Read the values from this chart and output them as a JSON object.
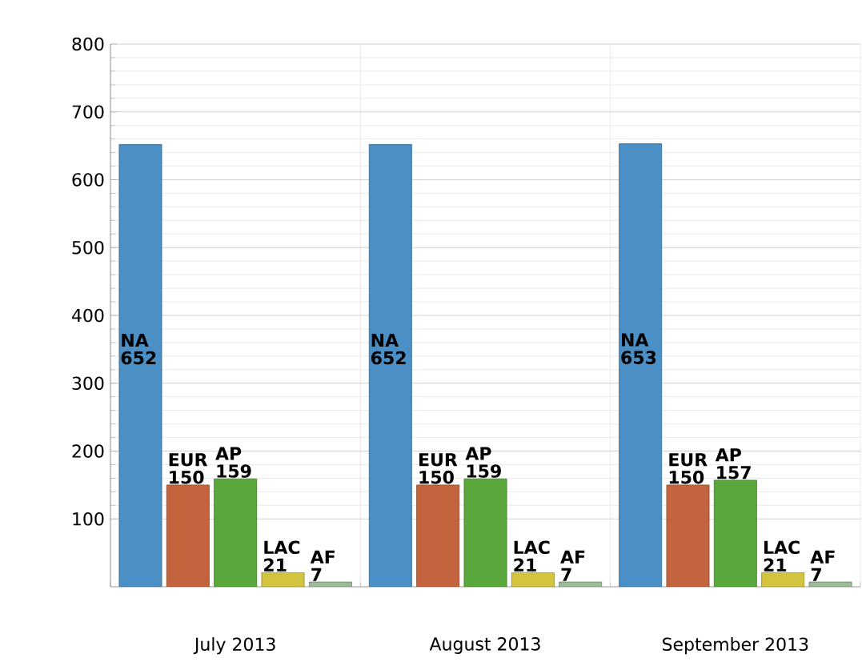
{
  "chart_data": {
    "type": "bar",
    "categories": [
      "July 2013",
      "August 2013",
      "September 2013"
    ],
    "series": [
      {
        "name": "NA",
        "color": "#4a8fc6",
        "values": [
          652,
          652,
          653
        ]
      },
      {
        "name": "EUR",
        "color": "#c4643e",
        "values": [
          150,
          150,
          150
        ]
      },
      {
        "name": "AP",
        "color": "#5aa83c",
        "values": [
          159,
          159,
          157
        ]
      },
      {
        "name": "LAC",
        "color": "#d2c43e",
        "values": [
          21,
          21,
          21
        ]
      },
      {
        "name": "AF",
        "color": "#9dbb98",
        "values": [
          7,
          7,
          7
        ]
      }
    ],
    "ylim": [
      0,
      800
    ],
    "yticks": [
      100,
      200,
      300,
      400,
      500,
      600,
      700,
      800
    ],
    "grid": true,
    "data_labels": true
  }
}
